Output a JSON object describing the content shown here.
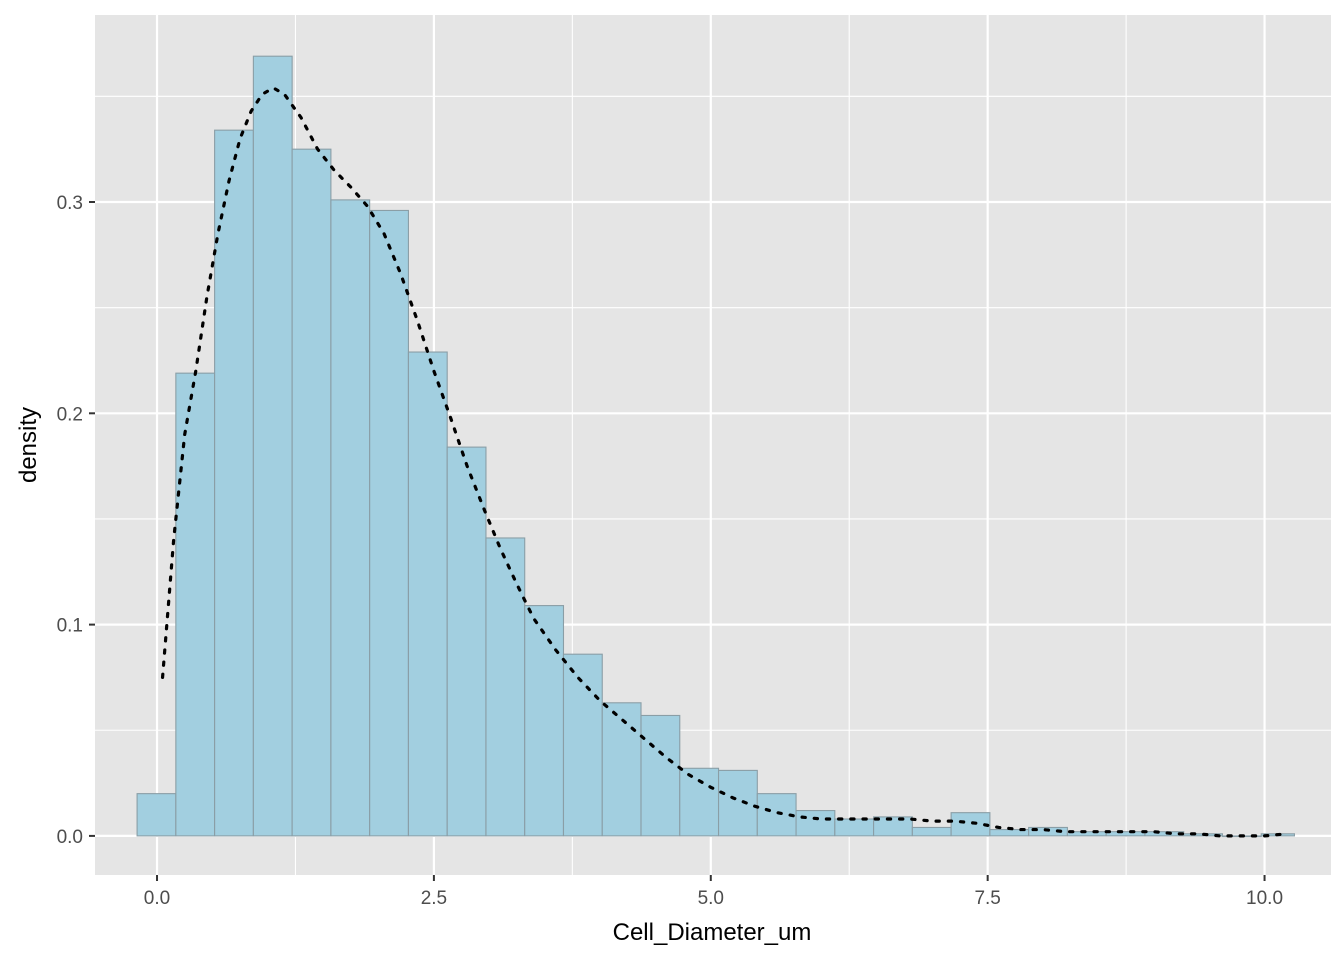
{
  "chart_data": {
    "type": "bar",
    "subtype": "histogram",
    "title": "",
    "xlabel": "Cell_Diameter_um",
    "ylabel": "density",
    "xlim": [
      -0.56,
      10.6
    ],
    "ylim": [
      -0.0185,
      0.3885
    ],
    "x_ticks": [
      0.0,
      2.5,
      5.0,
      7.5,
      10.0
    ],
    "x_tick_labels": [
      "0.0",
      "2.5",
      "5.0",
      "7.5",
      "10.0"
    ],
    "y_ticks": [
      0.0,
      0.1,
      0.2,
      0.3
    ],
    "y_tick_labels": [
      "0.0",
      "0.1",
      "0.2",
      "0.3"
    ],
    "grid": true,
    "legend": "none",
    "colors": {
      "panel_background": "#e5e5e5",
      "grid_line": "#ffffff",
      "bar_fill": "#a2cfe0",
      "bar_outline": "#8a9ea6",
      "density_line": "#000000"
    },
    "bin_width": 0.35,
    "bins": [
      {
        "x0": -0.18,
        "x1": 0.17,
        "density": 0.02
      },
      {
        "x0": 0.17,
        "x1": 0.52,
        "density": 0.219
      },
      {
        "x0": 0.52,
        "x1": 0.87,
        "density": 0.334
      },
      {
        "x0": 0.87,
        "x1": 1.22,
        "density": 0.369
      },
      {
        "x0": 1.22,
        "x1": 1.57,
        "density": 0.325
      },
      {
        "x0": 1.57,
        "x1": 1.92,
        "density": 0.301
      },
      {
        "x0": 1.92,
        "x1": 2.27,
        "density": 0.296
      },
      {
        "x0": 2.27,
        "x1": 2.62,
        "density": 0.229
      },
      {
        "x0": 2.62,
        "x1": 2.97,
        "density": 0.184
      },
      {
        "x0": 2.97,
        "x1": 3.32,
        "density": 0.141
      },
      {
        "x0": 3.32,
        "x1": 3.67,
        "density": 0.109
      },
      {
        "x0": 3.67,
        "x1": 4.02,
        "density": 0.086
      },
      {
        "x0": 4.02,
        "x1": 4.37,
        "density": 0.063
      },
      {
        "x0": 4.37,
        "x1": 4.72,
        "density": 0.057
      },
      {
        "x0": 4.72,
        "x1": 5.07,
        "density": 0.032
      },
      {
        "x0": 5.07,
        "x1": 5.42,
        "density": 0.031
      },
      {
        "x0": 5.42,
        "x1": 5.77,
        "density": 0.02
      },
      {
        "x0": 5.77,
        "x1": 6.12,
        "density": 0.012
      },
      {
        "x0": 6.12,
        "x1": 6.47,
        "density": 0.008
      },
      {
        "x0": 6.47,
        "x1": 6.82,
        "density": 0.009
      },
      {
        "x0": 6.82,
        "x1": 7.17,
        "density": 0.004
      },
      {
        "x0": 7.17,
        "x1": 7.52,
        "density": 0.011
      },
      {
        "x0": 7.52,
        "x1": 7.87,
        "density": 0.003
      },
      {
        "x0": 7.87,
        "x1": 8.22,
        "density": 0.004
      },
      {
        "x0": 8.22,
        "x1": 8.57,
        "density": 0.002
      },
      {
        "x0": 8.57,
        "x1": 8.92,
        "density": 0.002
      },
      {
        "x0": 8.92,
        "x1": 9.27,
        "density": 0.002
      },
      {
        "x0": 9.27,
        "x1": 9.62,
        "density": 0.001
      },
      {
        "x0": 9.62,
        "x1": 9.97,
        "density": 0.0
      },
      {
        "x0": 9.97,
        "x1": 10.27,
        "density": 0.001
      }
    ],
    "density_curve": {
      "style": "dotted",
      "x": [
        0.05,
        0.15,
        0.25,
        0.35,
        0.45,
        0.55,
        0.65,
        0.75,
        0.85,
        0.95,
        1.05,
        1.15,
        1.3,
        1.45,
        1.6,
        1.75,
        1.9,
        2.05,
        2.2,
        2.35,
        2.5,
        2.65,
        2.8,
        2.95,
        3.1,
        3.25,
        3.4,
        3.6,
        3.8,
        4.0,
        4.2,
        4.4,
        4.6,
        4.8,
        5.0,
        5.2,
        5.4,
        5.6,
        5.8,
        6.0,
        6.2,
        6.4,
        6.6,
        6.8,
        7.0,
        7.2,
        7.4,
        7.6,
        7.8,
        8.0,
        8.2,
        8.4,
        8.6,
        8.8,
        9.0,
        9.2,
        9.4,
        9.6,
        9.8,
        10.0,
        10.2
      ],
      "y": [
        0.075,
        0.14,
        0.19,
        0.22,
        0.255,
        0.285,
        0.31,
        0.33,
        0.343,
        0.351,
        0.354,
        0.351,
        0.34,
        0.325,
        0.315,
        0.307,
        0.298,
        0.285,
        0.266,
        0.244,
        0.22,
        0.198,
        0.175,
        0.155,
        0.136,
        0.119,
        0.103,
        0.088,
        0.075,
        0.064,
        0.055,
        0.046,
        0.037,
        0.029,
        0.023,
        0.018,
        0.014,
        0.011,
        0.009,
        0.008,
        0.008,
        0.008,
        0.008,
        0.008,
        0.007,
        0.007,
        0.006,
        0.004,
        0.003,
        0.003,
        0.002,
        0.002,
        0.002,
        0.002,
        0.002,
        0.001,
        0.001,
        0.0,
        0.0,
        0.0,
        0.001
      ]
    }
  }
}
